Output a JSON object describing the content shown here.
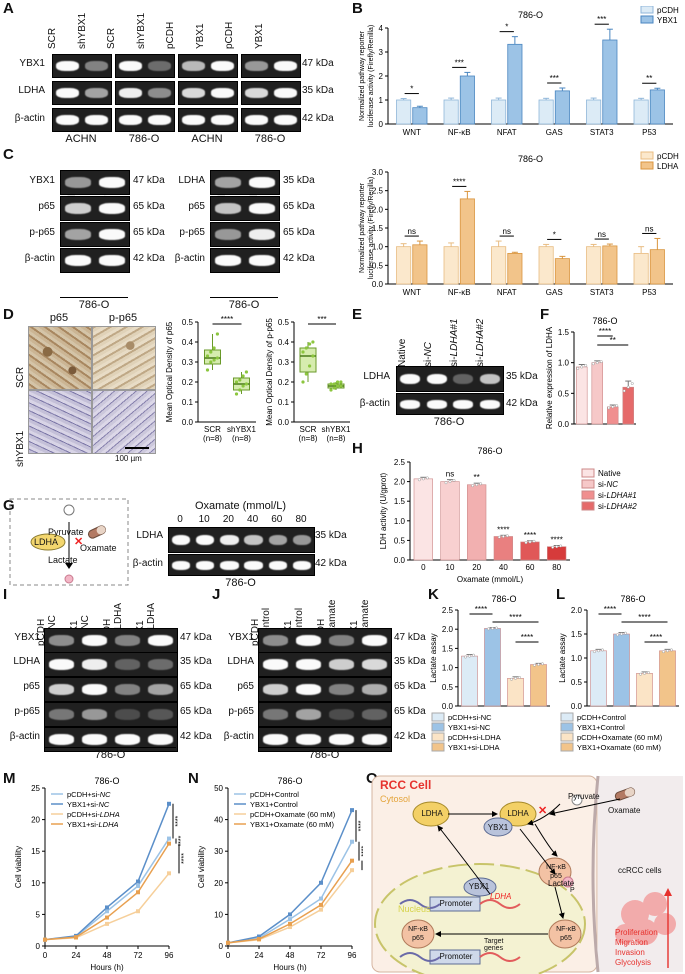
{
  "panels": [
    "A",
    "B",
    "C",
    "D",
    "E",
    "F",
    "G",
    "H",
    "I",
    "J",
    "K",
    "L",
    "M",
    "N",
    "O"
  ],
  "blot_rows": {
    "ybx1": "YBX1",
    "ldha": "LDHA",
    "bactin": "β-actin",
    "p65": "p65",
    "pp65": "p-p65"
  },
  "kda": {
    "k47": "47 kDa",
    "k35": "35 kDa",
    "k42": "42 kDa",
    "k65": "65 kDa"
  },
  "cell_lines": {
    "achn": "ACHN",
    "o786": "786-O"
  },
  "panelA": {
    "lanes": [
      "SCR",
      "shYBX1",
      "SCR",
      "shYBX1",
      "pCDH",
      "YBX1",
      "pCDH",
      "YBX1"
    ]
  },
  "panelC": {
    "lanes_left": [
      "pCDH",
      "YBX1"
    ],
    "lanes_right": [
      "pCDH",
      "LDHA"
    ]
  },
  "panelD": {
    "img_cols": [
      "p65",
      "p-p65"
    ],
    "img_rows": [
      "SCR",
      "shYBX1"
    ],
    "scale": "100 µm",
    "ylab1": "Mean Optical Density of p65",
    "ylab2": "Mean Optical Density of p-p65",
    "xcats": [
      "SCR",
      "shYBX1"
    ],
    "xn": [
      "(n=8)",
      "(n=8)"
    ],
    "sig1": "****",
    "sig2": "***"
  },
  "panelE": {
    "lanes": [
      "Native",
      "si-NC",
      "si-LDHA#1",
      "si-LDHA#2"
    ]
  },
  "panelG": {
    "diagram": {
      "pyruvate": "Pyruvate",
      "ldha": "LDHA",
      "oxamate": "Oxamate",
      "lactate": "Lactate"
    },
    "title": "Oxamate (mmol/L)",
    "doses": [
      "0",
      "10",
      "20",
      "40",
      "60",
      "80"
    ]
  },
  "panelI": {
    "lanes": [
      "pCDH\n+si-NC",
      "YBX1\n+si-NC",
      "pCDH\n+si-LDHA",
      "YBX1\n+si-LDHA"
    ]
  },
  "panelJ": {
    "lanes": [
      "pCDH\n+Control",
      "YBX1\n+Control",
      "pCDH\n+Oxamate",
      "YBX1\n+Oxamate"
    ]
  },
  "chart_data": [
    {
      "id": "B_top",
      "type": "bar",
      "title": "786-O",
      "ylabel": "Normalized pathway reporter\nluciferase activity (Firefly/Renilla)",
      "categories": [
        "WNT",
        "NF-κB",
        "NFAT",
        "GAS",
        "STAT3",
        "P53"
      ],
      "ylim": [
        0,
        4
      ],
      "yticks": [
        0,
        1,
        2,
        3,
        4
      ],
      "series": [
        {
          "name": "pCDH",
          "color": "#dcebf6",
          "edge": "#8fb6d9",
          "values": [
            1.0,
            1.0,
            1.0,
            1.0,
            1.0,
            1.0
          ],
          "err": [
            0.06,
            0.08,
            0.08,
            0.07,
            0.08,
            0.07
          ]
        },
        {
          "name": "YBX1",
          "color": "#9cc3e6",
          "edge": "#4a86c0",
          "values": [
            0.68,
            2.0,
            3.32,
            1.38,
            3.5,
            1.42
          ],
          "err": [
            0.06,
            0.15,
            0.32,
            0.12,
            0.45,
            0.07
          ]
        }
      ],
      "sig": [
        "*",
        "***",
        "*",
        "***",
        "***",
        "**"
      ]
    },
    {
      "id": "B_bottom",
      "type": "bar",
      "title": "786-O",
      "ylabel": "Normalized pathway reporter\nluciferase activity (Firefly/Renilla)",
      "categories": [
        "WNT",
        "NF-κB",
        "NFAT",
        "GAS",
        "STAT3",
        "P53"
      ],
      "ylim": [
        0,
        3
      ],
      "yticks": [
        0.0,
        0.5,
        1.0,
        1.5,
        2.0,
        2.5,
        3.0
      ],
      "series": [
        {
          "name": "pCDH",
          "color": "#fbe8cc",
          "edge": "#e8bc82",
          "values": [
            1.0,
            1.0,
            1.0,
            1.0,
            1.0,
            0.82
          ],
          "err": [
            0.08,
            0.1,
            0.15,
            0.06,
            0.06,
            0.18
          ]
        },
        {
          "name": "LDHA",
          "color": "#f2c48a",
          "edge": "#d9953f",
          "values": [
            1.05,
            2.28,
            0.82,
            0.68,
            1.02,
            0.92
          ],
          "err": [
            0.1,
            0.2,
            0.03,
            0.06,
            0.05,
            0.3
          ]
        }
      ],
      "sig": [
        "ns",
        "****",
        "ns",
        "*",
        "ns",
        "ns"
      ]
    },
    {
      "id": "D_box1",
      "type": "box",
      "ylim": [
        0.0,
        0.5
      ],
      "yticks": [
        0.0,
        0.1,
        0.2,
        0.3,
        0.4,
        0.5
      ],
      "groups": [
        {
          "name": "SCR",
          "q1": 0.29,
          "median": 0.32,
          "q3": 0.36,
          "min": 0.26,
          "max": 0.44,
          "points": [
            0.26,
            0.3,
            0.31,
            0.32,
            0.33,
            0.35,
            0.37,
            0.44
          ]
        },
        {
          "name": "shYBX1",
          "q1": 0.16,
          "median": 0.19,
          "q3": 0.22,
          "min": 0.14,
          "max": 0.25,
          "points": [
            0.14,
            0.16,
            0.18,
            0.19,
            0.2,
            0.21,
            0.23,
            0.25
          ]
        }
      ]
    },
    {
      "id": "D_box2",
      "type": "box",
      "ylim": [
        0.0,
        0.5
      ],
      "yticks": [
        0.0,
        0.1,
        0.2,
        0.3,
        0.4,
        0.5
      ],
      "groups": [
        {
          "name": "SCR",
          "q1": 0.25,
          "median": 0.33,
          "q3": 0.37,
          "min": 0.2,
          "max": 0.4,
          "points": [
            0.2,
            0.24,
            0.28,
            0.33,
            0.35,
            0.37,
            0.39,
            0.4
          ]
        },
        {
          "name": "shYBX1",
          "q1": 0.17,
          "median": 0.18,
          "q3": 0.19,
          "min": 0.16,
          "max": 0.2,
          "points": [
            0.16,
            0.17,
            0.18,
            0.18,
            0.19,
            0.19,
            0.2,
            0.2
          ]
        }
      ]
    },
    {
      "id": "F",
      "type": "bar",
      "title": "786-O",
      "ylabel": "Relative expression of LDHA",
      "categories": [
        "Native",
        "si-NC",
        "si-LDHA#1",
        "si-LDHA#2"
      ],
      "legend": [
        "Native",
        "si-NC",
        "si-LDHA#1",
        "si-LDHA#2"
      ],
      "colors": [
        "#fbe4e4",
        "#f6c8c8",
        "#f08f8f",
        "#e56a6a"
      ],
      "values": [
        0.93,
        1.0,
        0.28,
        0.6
      ],
      "err": [
        0.04,
        0.03,
        0.03,
        0.1
      ],
      "ylim": [
        0.0,
        1.5
      ],
      "yticks": [
        0.0,
        0.5,
        1.0,
        1.5
      ],
      "sig": [
        "****",
        "**"
      ]
    },
    {
      "id": "H",
      "type": "bar",
      "title": "786-O",
      "ylabel": "LDH activity (U/gprot)",
      "xlabel": "Oxamate (mmol/L)",
      "categories": [
        "0",
        "10",
        "20",
        "40",
        "60",
        "80"
      ],
      "colors": [
        "#fbe4e4",
        "#f8d0d0",
        "#f2b0b0",
        "#e98080",
        "#e05858",
        "#d63b3b"
      ],
      "values": [
        2.07,
        2.0,
        1.92,
        0.6,
        0.46,
        0.34
      ],
      "err": [
        0.04,
        0.05,
        0.04,
        0.03,
        0.03,
        0.03
      ],
      "ylim": [
        0.0,
        2.5
      ],
      "yticks": [
        0.0,
        0.5,
        1.0,
        1.5,
        2.0,
        2.5
      ],
      "sig": [
        "",
        "ns",
        "**",
        "****",
        "****",
        "****"
      ]
    },
    {
      "id": "K",
      "type": "bar",
      "title": "786-O",
      "ylabel": "Lactate assay",
      "categories": [
        "pCDH+si-NC",
        "YBX1+si-NC",
        "pCDH+si-LDHA",
        "YBX1+si-LDHA"
      ],
      "colors": [
        "#dcebf6",
        "#9cc3e6",
        "#fbe4c6",
        "#f2c48a"
      ],
      "values": [
        1.3,
        2.02,
        0.72,
        1.08
      ],
      "err": [
        0.04,
        0.02,
        0.04,
        0.03
      ],
      "ylim": [
        0.0,
        2.5
      ],
      "yticks": [
        0.0,
        0.5,
        1.0,
        1.5,
        2.0,
        2.5
      ],
      "sig": [
        "****",
        "****",
        "****"
      ]
    },
    {
      "id": "L",
      "type": "bar",
      "title": "786-O",
      "ylabel": "Lactate assay",
      "categories": [
        "pCDH+Control",
        "YBX1+Control",
        "pCDH+Oxamate (60 mM)",
        "YBX1+Oxamate (60 mM)"
      ],
      "colors": [
        "#dcebf6",
        "#9cc3e6",
        "#fbe4c6",
        "#f2c48a"
      ],
      "values": [
        1.15,
        1.5,
        0.68,
        1.15
      ],
      "err": [
        0.03,
        0.03,
        0.03,
        0.03
      ],
      "ylim": [
        0.0,
        2.0
      ],
      "yticks": [
        0.0,
        0.5,
        1.0,
        1.5,
        2.0
      ],
      "sig": [
        "****",
        "****",
        "****"
      ]
    },
    {
      "id": "M",
      "type": "line",
      "title": "786-O",
      "ylabel": "Cell viability",
      "xlabel": "Hours (h)",
      "x": [
        0,
        24,
        48,
        72,
        96
      ],
      "xlim": [
        0,
        96
      ],
      "ylim": [
        0,
        25
      ],
      "yticks": [
        0,
        5,
        10,
        15,
        20,
        25
      ],
      "series": [
        {
          "name": "pCDH+si-NC",
          "color": "#9cc3e6",
          "values": [
            1,
            1.5,
            5.5,
            9.5,
            17
          ]
        },
        {
          "name": "YBX1+si-NC",
          "color": "#5b8fc9",
          "values": [
            1,
            1.6,
            6.1,
            10.2,
            22.5
          ]
        },
        {
          "name": "pCDH+si-LDHA",
          "color": "#f6cf9a",
          "values": [
            1,
            1.3,
            3.5,
            5.5,
            11.5
          ]
        },
        {
          "name": "YBX1+si-LDHA",
          "color": "#e8a050",
          "values": [
            1,
            1.4,
            4.5,
            8.5,
            16.2
          ]
        }
      ],
      "sig": [
        "****",
        "****",
        "****"
      ]
    },
    {
      "id": "N",
      "type": "line",
      "title": "786-O",
      "ylabel": "Cell viability",
      "xlabel": "Hours (h)",
      "x": [
        0,
        24,
        48,
        72,
        96
      ],
      "xlim": [
        0,
        96
      ],
      "ylim": [
        0,
        50
      ],
      "yticks": [
        0,
        10,
        20,
        30,
        40,
        50
      ],
      "series": [
        {
          "name": "pCDH+Control",
          "color": "#9cc3e6",
          "values": [
            1,
            2.5,
            8.5,
            15,
            33
          ]
        },
        {
          "name": "YBX1+Control",
          "color": "#5b8fc9",
          "values": [
            1,
            3,
            10,
            20,
            43
          ]
        },
        {
          "name": "pCDH+Oxamate (60 mM)",
          "color": "#f6cf9a",
          "values": [
            1,
            2,
            6,
            11.5,
            24
          ]
        },
        {
          "name": "YBX1+Oxamate (60 mM)",
          "color": "#e8a050",
          "values": [
            1,
            2.2,
            7,
            13,
            27
          ]
        }
      ],
      "sig": [
        "****",
        "****",
        "*"
      ]
    }
  ],
  "panelO": {
    "title": "RCC Cell",
    "cytosol": "Cytosol",
    "nucleus": "Nucleus",
    "ldha": "LDHA",
    "ybx1": "YBX1",
    "pyruvate": "Pyruvate",
    "oxamate": "Oxamate",
    "nfkb": "NF-κB",
    "p65": "p65",
    "p": "P",
    "lactate": "Lactate",
    "promoter": "Promoter",
    "ldha_gene": "LDHA",
    "target": "Target\ngenes",
    "ccrcc": "ccRCC cells",
    "outcomes": [
      "Proliferation",
      "Migration",
      "Invasion",
      "Glycolysis"
    ],
    "colors": {
      "title": "#e6322e",
      "cytosol": "#e4a43a",
      "nucleus": "#d6d34a",
      "outcome": "#e6322e"
    }
  }
}
